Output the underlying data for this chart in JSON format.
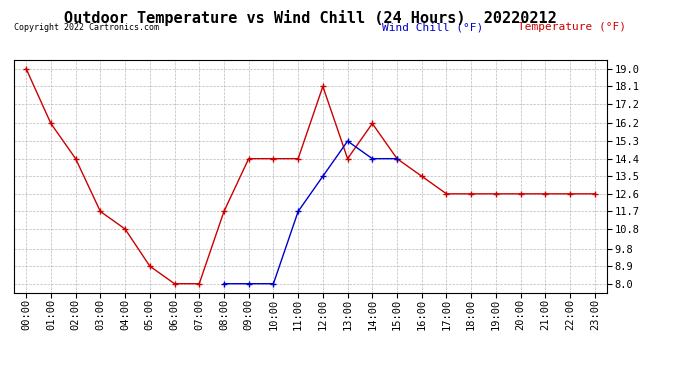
{
  "title": "Outdoor Temperature vs Wind Chill (24 Hours)  20220212",
  "copyright": "Copyright 2022 Cartronics.com",
  "legend_wind_chill": "Wind Chill (°F)",
  "legend_temperature": "Temperature (°F)",
  "x_labels": [
    "00:00",
    "01:00",
    "02:00",
    "03:00",
    "04:00",
    "05:00",
    "06:00",
    "07:00",
    "08:00",
    "09:00",
    "10:00",
    "11:00",
    "12:00",
    "13:00",
    "14:00",
    "15:00",
    "16:00",
    "17:00",
    "18:00",
    "19:00",
    "20:00",
    "21:00",
    "22:00",
    "23:00"
  ],
  "y_ticks": [
    8.0,
    8.9,
    9.8,
    10.8,
    11.7,
    12.6,
    13.5,
    14.4,
    15.3,
    16.2,
    17.2,
    18.1,
    19.0
  ],
  "ylim": [
    7.55,
    19.45
  ],
  "temperature": [
    19.0,
    16.2,
    14.4,
    11.7,
    10.8,
    8.9,
    8.0,
    8.0,
    11.7,
    14.4,
    14.4,
    14.4,
    18.1,
    14.4,
    16.2,
    14.4,
    13.5,
    12.6,
    12.6,
    12.6,
    12.6,
    12.6,
    12.6,
    12.6
  ],
  "wind_chill": [
    null,
    null,
    null,
    null,
    null,
    null,
    null,
    null,
    8.0,
    8.0,
    8.0,
    11.7,
    13.5,
    15.3,
    14.4,
    14.4,
    null,
    null,
    null,
    null,
    null,
    null,
    null,
    null
  ],
  "temp_color": "#cc0000",
  "wind_chill_color": "#0000cc",
  "background_color": "#ffffff",
  "grid_color": "#bbbbbb",
  "title_fontsize": 11,
  "tick_fontsize": 7.5,
  "copyright_fontsize": 6,
  "legend_fontsize": 8
}
